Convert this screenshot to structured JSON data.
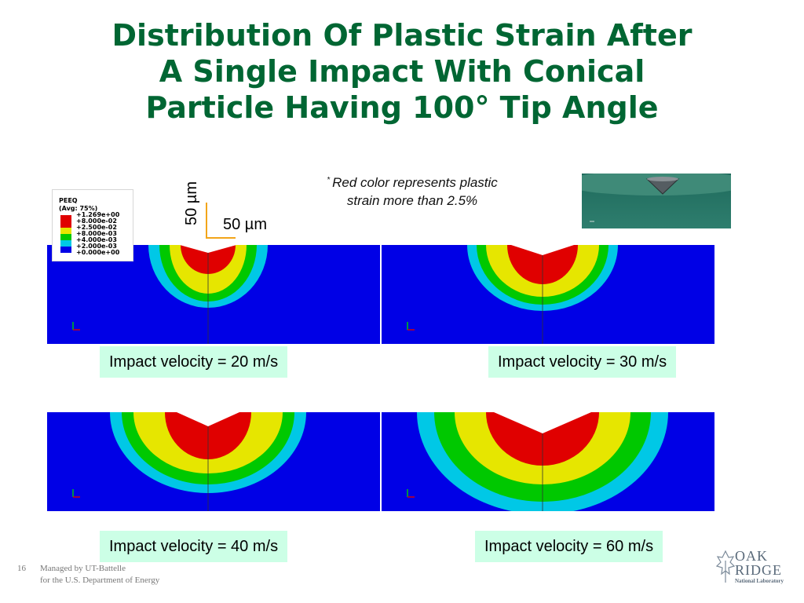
{
  "slide": {
    "title_lines": [
      "Distribution Of Plastic Strain After",
      "A Single Impact With Conical",
      "Particle Having 100° Tip Angle"
    ],
    "note": {
      "marker": "*",
      "lines": [
        "Red color represents plastic",
        "strain more than 2.5%"
      ]
    },
    "scale_bar": {
      "vertical_label": "50 µm",
      "horizontal_label": "50 µm"
    },
    "legend": {
      "variable": "PEEQ",
      "averaging": "(Avg: 75%)",
      "levels": [
        "+1.269e+00",
        "+8.000e-02",
        "+2.500e-02",
        "+8.000e-03",
        "+4.000e-03",
        "+2.000e-03",
        "+0.000e+00"
      ],
      "band_colors": [
        "#e00000",
        "#e00000",
        "#e6e600",
        "#00c800",
        "#00c8e6",
        "#0000e6"
      ]
    },
    "panels": [
      {
        "caption": "Impact velocity = 20 m/s",
        "velocity_m_s": 20
      },
      {
        "caption": "Impact velocity = 30 m/s",
        "velocity_m_s": 30
      },
      {
        "caption": "Impact velocity = 40 m/s",
        "velocity_m_s": 40
      },
      {
        "caption": "Impact velocity = 60 m/s",
        "velocity_m_s": 60
      }
    ],
    "colors": {
      "title": "#006633",
      "caption_bg": "#ccffe6",
      "substrate": "#0000e6",
      "band_cyan": "#00c8e6",
      "band_green": "#00c800",
      "band_yellow": "#e6e600",
      "band_red": "#e00000"
    },
    "footer": {
      "page_number": "16",
      "lines": [
        "Managed by UT-Battelle",
        "for the U.S. Department of Energy"
      ]
    },
    "logo": {
      "line1": "OAK",
      "line2": "RIDGE",
      "line3": "National Laboratory"
    }
  }
}
